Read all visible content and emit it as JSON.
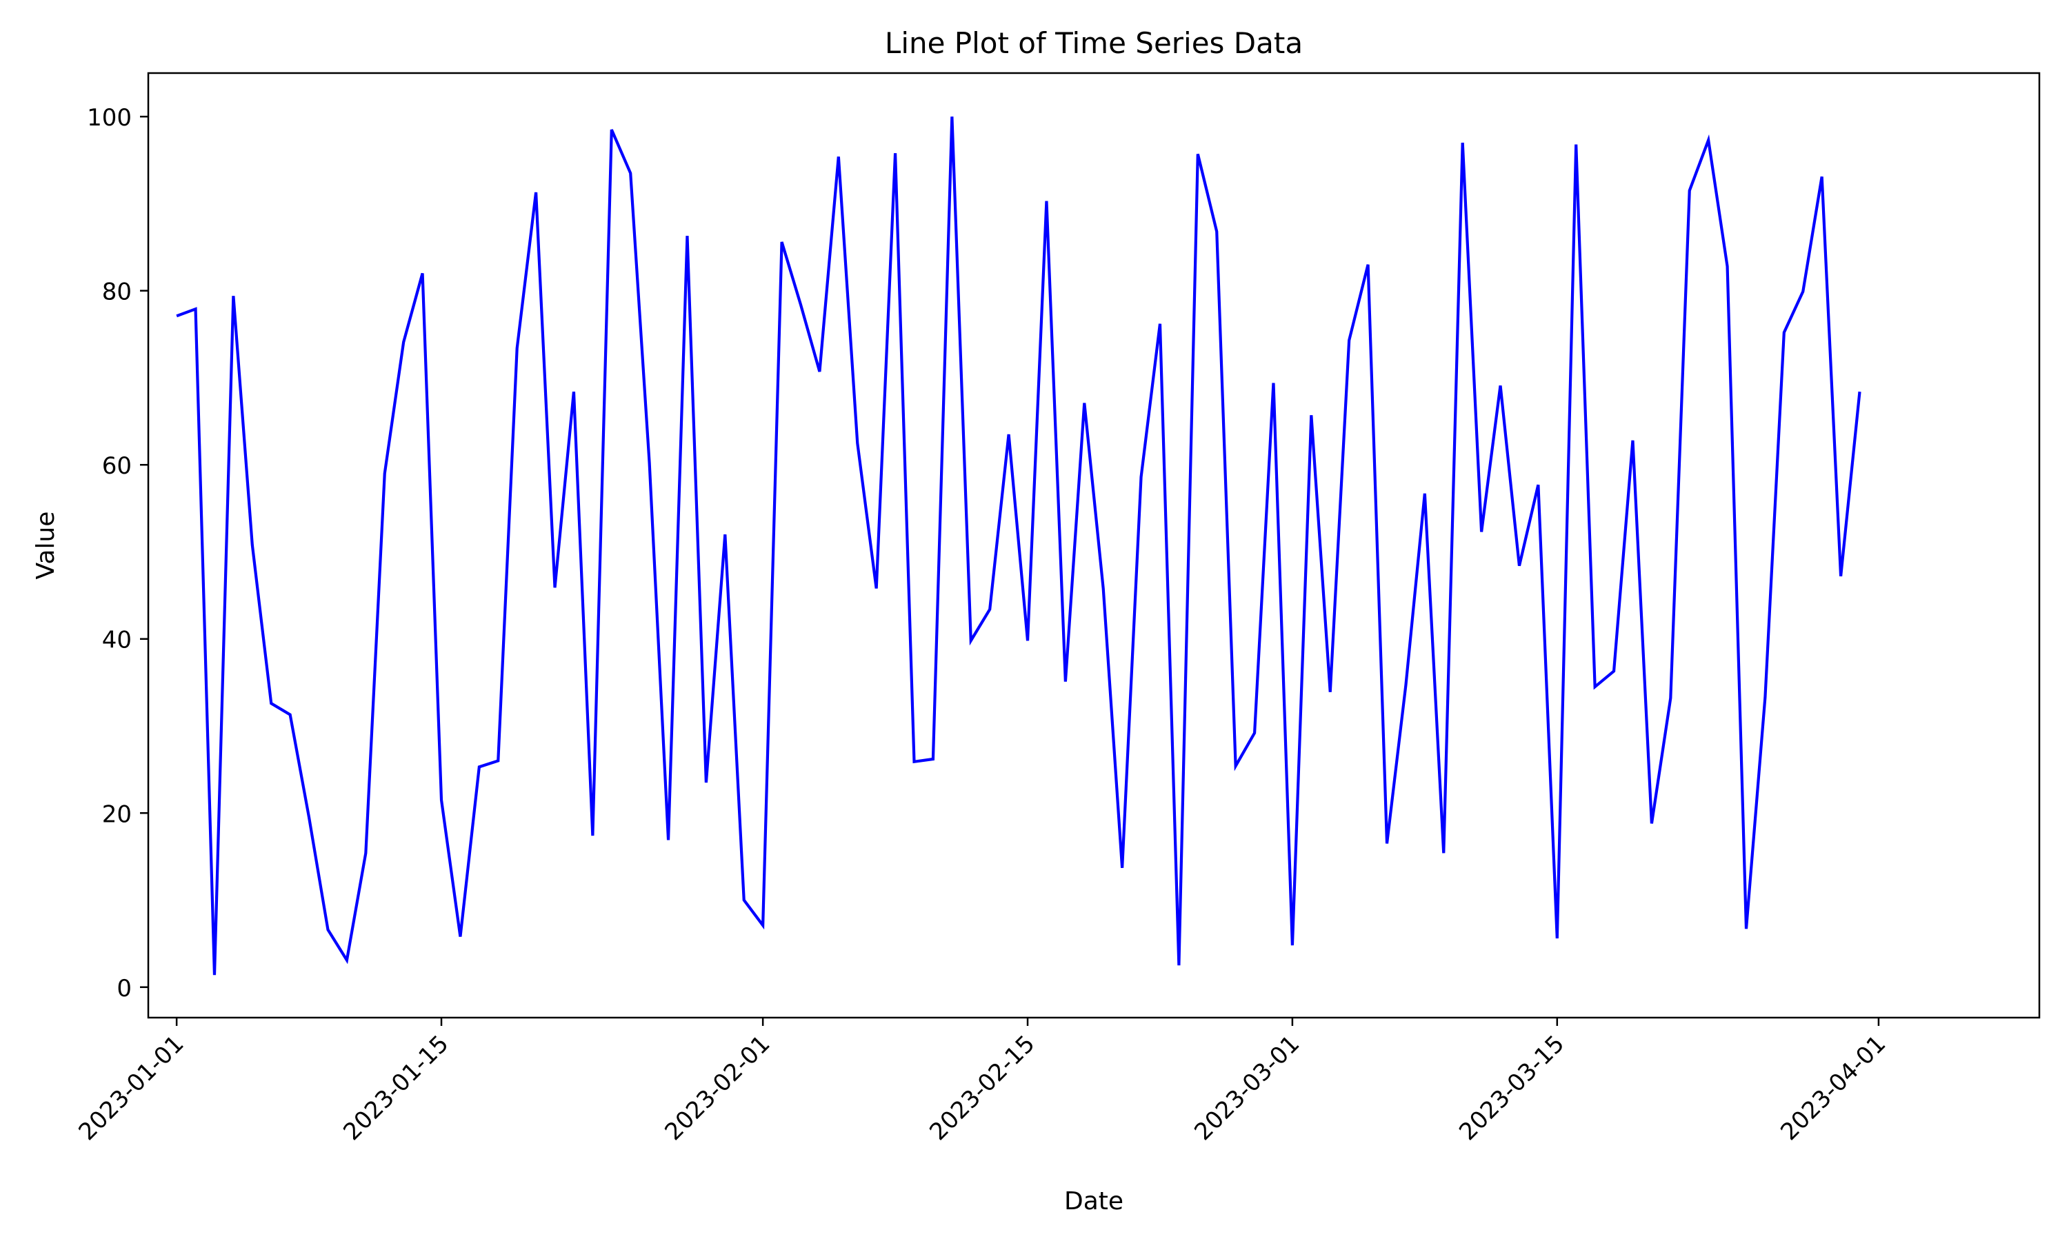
{
  "chart_data": {
    "type": "line",
    "title": "Line Plot of Time Series Data",
    "xlabel": "Date",
    "ylabel": "Value",
    "line_color": "#0000ff",
    "start_date": "2023-01-01",
    "xlim": [
      -1.5,
      98.5
    ],
    "ylim": [
      -3.5,
      105
    ],
    "xticks": [
      {
        "day": 0,
        "label": "2023-01-01"
      },
      {
        "day": 14,
        "label": "2023-01-15"
      },
      {
        "day": 31,
        "label": "2023-02-01"
      },
      {
        "day": 45,
        "label": "2023-02-15"
      },
      {
        "day": 59,
        "label": "2023-03-01"
      },
      {
        "day": 73,
        "label": "2023-03-15"
      },
      {
        "day": 90,
        "label": "2023-04-01"
      }
    ],
    "yticks": [
      0,
      20,
      40,
      60,
      80,
      100
    ],
    "series": [
      {
        "name": "Value",
        "values": [
          77.1,
          77.9,
          1.4,
          79.4,
          50.8,
          32.6,
          31.3,
          19.5,
          6.6,
          3.1,
          15.4,
          59.0,
          74.1,
          82.0,
          21.5,
          5.8,
          25.3,
          26.0,
          73.4,
          91.3,
          45.9,
          68.4,
          17.4,
          98.5,
          93.5,
          60.2,
          16.9,
          86.3,
          23.5,
          52.0,
          10.0,
          7.1,
          85.6,
          78.4,
          70.7,
          95.4,
          62.5,
          45.8,
          95.8,
          25.9,
          26.2,
          100.0,
          39.8,
          43.4,
          63.5,
          39.8,
          90.3,
          35.1,
          67.1,
          45.8,
          13.7,
          58.6,
          76.2,
          2.5,
          95.7,
          86.8,
          25.4,
          29.2,
          69.4,
          4.8,
          65.7,
          33.9,
          74.3,
          83.0,
          16.5,
          34.7,
          56.7,
          15.4,
          97.0,
          52.3,
          69.1,
          48.4,
          57.7,
          5.6,
          96.8,
          34.5,
          36.3,
          62.8,
          18.8,
          33.2,
          91.5,
          97.3,
          82.8,
          6.7,
          33.3,
          75.2,
          79.9,
          93.1,
          47.2,
          68.4
        ]
      }
    ]
  }
}
